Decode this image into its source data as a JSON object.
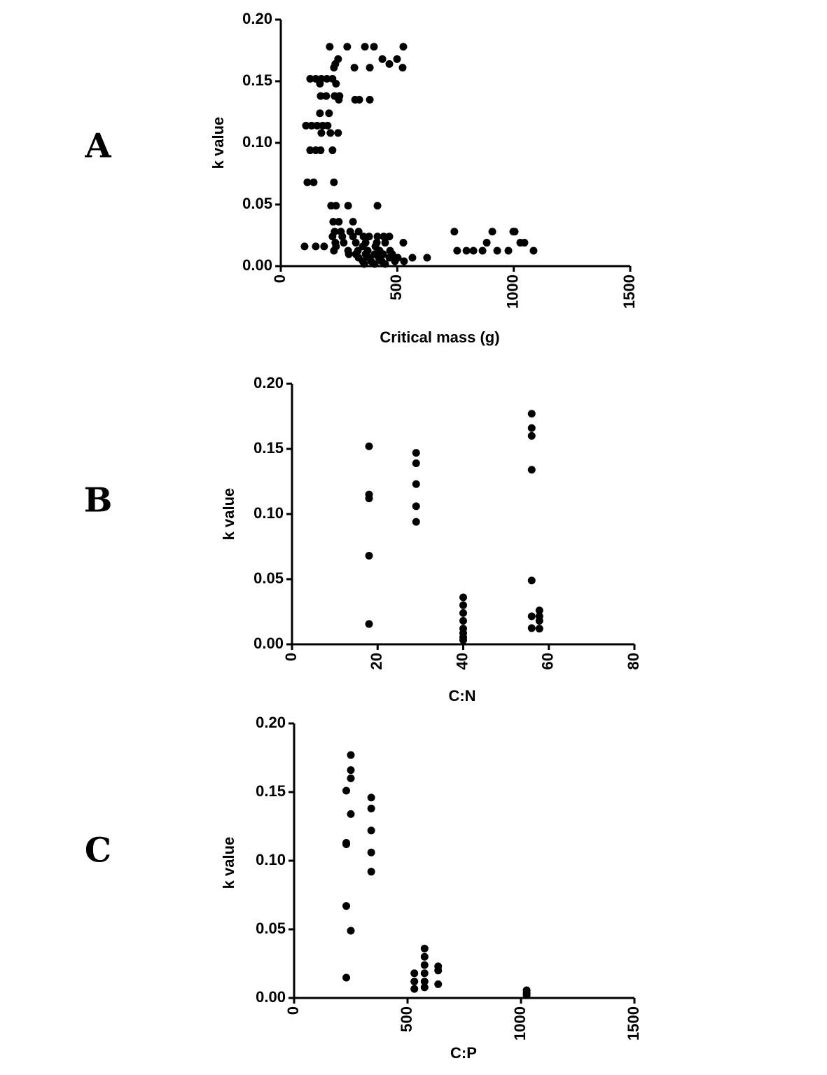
{
  "chart_data": [
    {
      "type": "scatter",
      "panel": "A",
      "xlabel": "Critical mass (g)",
      "ylabel": "k value",
      "color": "#000000",
      "xlim": [
        0,
        1500
      ],
      "xticks": [
        0,
        500,
        1000,
        1500
      ],
      "ylim": [
        0,
        0.2
      ],
      "yticks": [
        {
          "value": 0,
          "label": "0.00"
        },
        {
          "value": 0.05,
          "label": "0.05"
        },
        {
          "value": 0.1,
          "label": "0.10"
        },
        {
          "value": 0.15,
          "label": "0.15"
        },
        {
          "value": 0.2,
          "label": "0.20"
        }
      ],
      "x": [
        210,
        285,
        361,
        400,
        526,
        246,
        436,
        499,
        234,
        466,
        228,
        316,
        382,
        523,
        126,
        150,
        174,
        198,
        222,
        168,
        237,
        171,
        195,
        231,
        252,
        249,
        319,
        337,
        382,
        168,
        207,
        108,
        132,
        156,
        180,
        201,
        174,
        213,
        246,
        126,
        150,
        171,
        222,
        114,
        141,
        228,
        216,
        237,
        289,
        415,
        225,
        249,
        310,
        231,
        258,
        298,
        334,
        745,
        908,
        998,
        1004,
        222,
        264,
        310,
        355,
        379,
        415,
        442,
        466,
        234,
        270,
        322,
        364,
        412,
        448,
        526,
        884,
        1028,
        1046,
        102,
        150,
        186,
        237,
        352,
        406,
        228,
        289,
        331,
        373,
        424,
        469,
        757,
        797,
        827,
        866,
        929,
        977,
        1085,
        292,
        322,
        364,
        403,
        439,
        478,
        334,
        379,
        421,
        466,
        502,
        565,
        628,
        352,
        388,
        433,
        490,
        529,
        358,
        403,
        448
      ],
      "values": [
        0.178,
        0.178,
        0.178,
        0.178,
        0.178,
        0.168,
        0.168,
        0.168,
        0.164,
        0.164,
        0.161,
        0.161,
        0.161,
        0.161,
        0.152,
        0.152,
        0.152,
        0.152,
        0.152,
        0.148,
        0.148,
        0.138,
        0.138,
        0.138,
        0.138,
        0.135,
        0.135,
        0.135,
        0.135,
        0.124,
        0.124,
        0.114,
        0.114,
        0.114,
        0.114,
        0.114,
        0.108,
        0.108,
        0.108,
        0.094,
        0.094,
        0.094,
        0.094,
        0.068,
        0.068,
        0.068,
        0.049,
        0.049,
        0.049,
        0.049,
        0.036,
        0.036,
        0.036,
        0.028,
        0.028,
        0.028,
        0.028,
        0.028,
        0.028,
        0.028,
        0.028,
        0.024,
        0.024,
        0.024,
        0.024,
        0.024,
        0.024,
        0.024,
        0.024,
        0.019,
        0.019,
        0.019,
        0.019,
        0.019,
        0.019,
        0.019,
        0.019,
        0.019,
        0.019,
        0.016,
        0.016,
        0.016,
        0.016,
        0.016,
        0.016,
        0.0125,
        0.0125,
        0.0125,
        0.0125,
        0.0125,
        0.0125,
        0.0125,
        0.0125,
        0.0125,
        0.0125,
        0.0125,
        0.0125,
        0.0125,
        0.0097,
        0.0097,
        0.0097,
        0.0097,
        0.0097,
        0.0097,
        0.0068,
        0.0068,
        0.0068,
        0.0068,
        0.0068,
        0.0068,
        0.0068,
        0.004,
        0.004,
        0.004,
        0.004,
        0.004,
        0.0017,
        0.0017,
        0.0017
      ]
    },
    {
      "type": "scatter",
      "panel": "B",
      "xlabel": "C:N",
      "ylabel": "k value",
      "color": "#000000",
      "xlim": [
        0,
        80
      ],
      "xticks": [
        0,
        20,
        40,
        60,
        80
      ],
      "ylim": [
        0,
        0.2
      ],
      "yticks": [
        {
          "value": 0,
          "label": "0.00"
        },
        {
          "value": 0.05,
          "label": "0.05"
        },
        {
          "value": 0.1,
          "label": "0.10"
        },
        {
          "value": 0.15,
          "label": "0.15"
        },
        {
          "value": 0.2,
          "label": "0.20"
        }
      ],
      "x": [
        18,
        18,
        18,
        18,
        18,
        29,
        29,
        29,
        29,
        29,
        40,
        40,
        40,
        40,
        40,
        40,
        40,
        40,
        56,
        56,
        56,
        56,
        56,
        56,
        56,
        57.8,
        57.8,
        57.8,
        57.8
      ],
      "values": [
        0.152,
        0.115,
        0.112,
        0.068,
        0.0156,
        0.147,
        0.139,
        0.123,
        0.106,
        0.094,
        0.036,
        0.03,
        0.024,
        0.018,
        0.012,
        0.0086,
        0.0054,
        0.0032,
        0.177,
        0.166,
        0.16,
        0.134,
        0.049,
        0.0215,
        0.0124,
        0.026,
        0.0215,
        0.018,
        0.012
      ]
    },
    {
      "type": "scatter",
      "panel": "C",
      "xlabel": "C:P",
      "ylabel": "k value",
      "color": "#000000",
      "xlim": [
        0,
        1500
      ],
      "xticks": [
        0,
        500,
        1000,
        1500
      ],
      "ylim": [
        0,
        0.2
      ],
      "yticks": [
        {
          "value": 0,
          "label": "0.00"
        },
        {
          "value": 0.05,
          "label": "0.05"
        },
        {
          "value": 0.1,
          "label": "0.10"
        },
        {
          "value": 0.15,
          "label": "0.15"
        },
        {
          "value": 0.2,
          "label": "0.20"
        }
      ],
      "x": [
        230,
        230,
        230,
        230,
        230,
        250,
        250,
        250,
        250,
        250,
        340,
        340,
        340,
        340,
        340,
        530,
        530,
        530,
        575,
        575,
        575,
        575,
        575,
        575,
        635,
        635,
        635,
        1025,
        1025,
        1025
      ],
      "values": [
        0.151,
        0.113,
        0.112,
        0.067,
        0.0148,
        0.177,
        0.166,
        0.16,
        0.134,
        0.049,
        0.146,
        0.138,
        0.122,
        0.106,
        0.092,
        0.018,
        0.012,
        0.0066,
        0.036,
        0.03,
        0.024,
        0.018,
        0.012,
        0.0077,
        0.023,
        0.02,
        0.01,
        0.0056,
        0.0036,
        0.002
      ]
    }
  ]
}
